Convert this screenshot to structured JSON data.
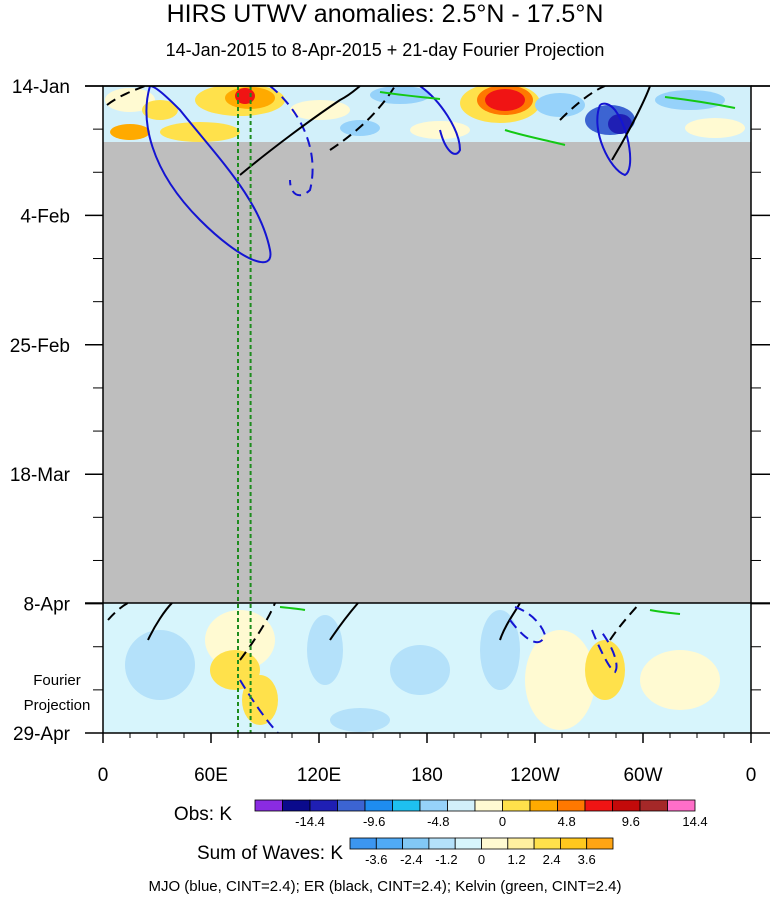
{
  "chart_data": {
    "type": "heatmap",
    "title": "HIRS UTWV anomalies: 2.5°N - 17.5°N",
    "subtitle": "14-Jan-2015 to 8-Apr-2015 + 21-day Fourier Projection",
    "x_tick_labels": [
      "0",
      "60E",
      "120E",
      "180",
      "120W",
      "60W",
      "0"
    ],
    "x_tick_values_deg_east": [
      0,
      60,
      120,
      180,
      240,
      300,
      360
    ],
    "y_tick_labels": [
      "14-Jan",
      "4-Feb",
      "25-Feb",
      "18-Mar",
      "8-Apr",
      "29-Apr"
    ],
    "y_projection_label": [
      "Fourier",
      "Projection"
    ],
    "obs_colorbar": {
      "label": "Obs: K",
      "tick_labels": [
        "-14.4",
        "-9.6",
        "-4.8",
        "0",
        "4.8",
        "9.6",
        "14.4"
      ],
      "colors": [
        "#8a2be2",
        "#0a0a8c",
        "#1f1fb4",
        "#3c64d2",
        "#1e8cf0",
        "#1ec0f0",
        "#96d2fa",
        "#d2f0fa",
        "#fffad2",
        "#ffe14b",
        "#ffaa00",
        "#ff7800",
        "#f01414",
        "#c30a0a",
        "#a52828",
        "#ff6ec8"
      ]
    },
    "waves_colorbar": {
      "label": "Sum of Waves: K",
      "tick_labels": [
        "-3.6",
        "-2.4",
        "-1.2",
        "0",
        "1.2",
        "2.4",
        "3.6"
      ],
      "colors": [
        "#3c96f0",
        "#50aaf5",
        "#82c8f5",
        "#b4e1fa",
        "#d7f5fc",
        "#fffad2",
        "#fff0a0",
        "#ffe14b",
        "#ffc81e",
        "#ffa514"
      ]
    },
    "footnote": "MJO (blue, CINT=2.4); ER (black, CINT=2.4); Kelvin (green, CINT=2.4)",
    "contour_legend": [
      {
        "wave": "MJO",
        "color": "#1414d2"
      },
      {
        "wave": "ER",
        "color": "#000000"
      },
      {
        "wave": "Kelvin",
        "color": "#14c814"
      }
    ],
    "reference_lines_lon_deg_east": [
      75,
      82
    ],
    "missing_data_color": "#bebebe",
    "obs_hotspots": [
      {
        "lon": 85,
        "date": "14-Jan",
        "sign": "positive"
      },
      {
        "lon": 210,
        "date": "16-Jan",
        "sign": "positive"
      },
      {
        "lon": 290,
        "date": "20-Jan",
        "sign": "negative"
      }
    ]
  }
}
